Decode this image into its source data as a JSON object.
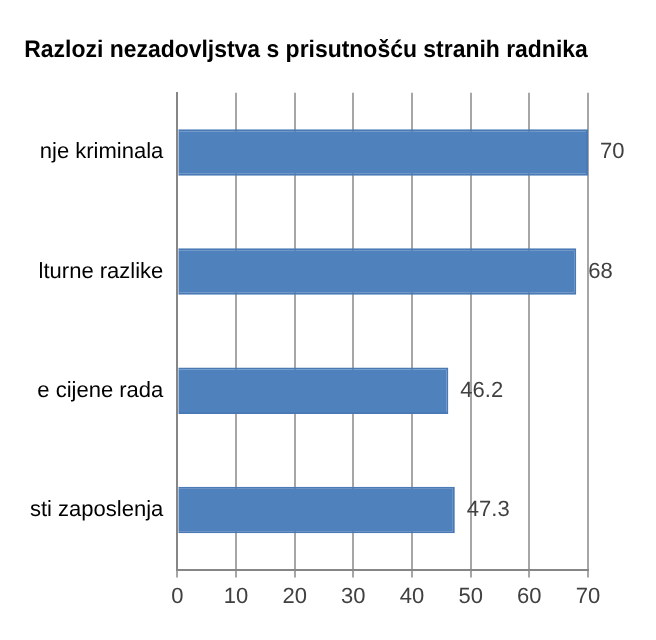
{
  "chart_data": {
    "type": "bar",
    "orientation": "horizontal",
    "title": "Razlozi nezadovljstva s prisutnošću stranih radnika",
    "categories": [
      "nje kriminala",
      "lturne razlike",
      "e cijene rada",
      "sti zaposlenja"
    ],
    "values": [
      70,
      68,
      46.2,
      47.3
    ],
    "color": "#4f81bd",
    "xlim": [
      0,
      70
    ],
    "xticks": [
      0,
      10,
      20,
      30,
      40,
      50,
      60,
      70
    ],
    "grid": "x",
    "data_labels": true,
    "legend": false
  }
}
